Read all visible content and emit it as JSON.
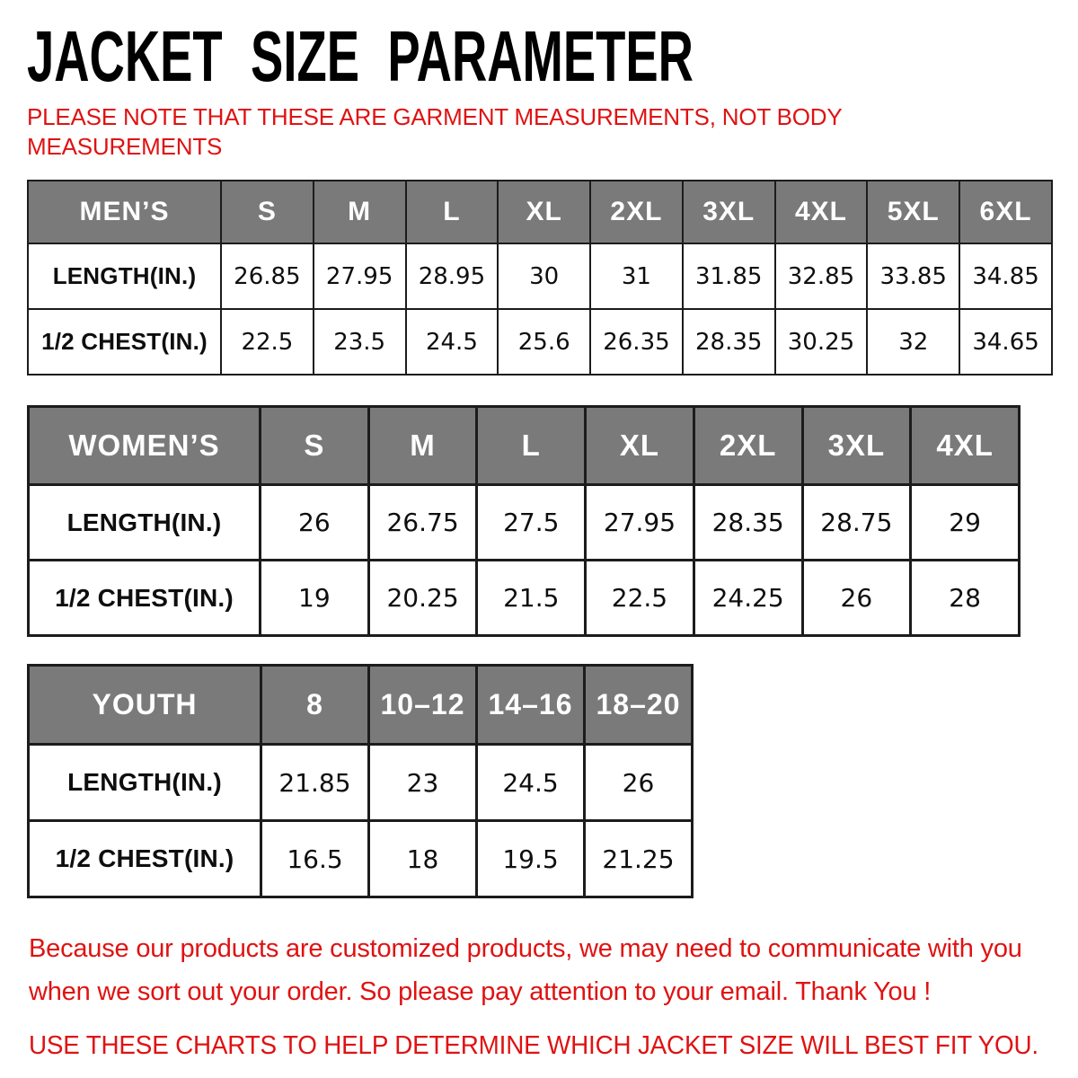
{
  "title": "JACKET SIZE PARAMETER",
  "note": "PLEASE NOTE THAT THESE ARE GARMENT MEASUREMENTS, NOT BODY\nMEASUREMENTS",
  "chart_data": [
    {
      "type": "table",
      "id": "mens",
      "name": "MEN’S",
      "columns": [
        "S",
        "M",
        "L",
        "XL",
        "2XL",
        "3XL",
        "4XL",
        "5XL",
        "6XL"
      ],
      "rows": [
        {
          "label": "LENGTH(IN.)",
          "values": [
            "26.85",
            "27.95",
            "28.95",
            "30",
            "31",
            "31.85",
            "32.85",
            "33.85",
            "34.85"
          ]
        },
        {
          "label": "1/2 CHEST(IN.)",
          "values": [
            "22.5",
            "23.5",
            "24.5",
            "25.6",
            "26.35",
            "28.35",
            "30.25",
            "32",
            "34.65"
          ]
        }
      ]
    },
    {
      "type": "table",
      "id": "womens",
      "name": "WOMEN’S",
      "columns": [
        "S",
        "M",
        "L",
        "XL",
        "2XL",
        "3XL",
        "4XL"
      ],
      "rows": [
        {
          "label": "LENGTH(IN.)",
          "values": [
            "26",
            "26.75",
            "27.5",
            "27.95",
            "28.35",
            "28.75",
            "29"
          ]
        },
        {
          "label": "1/2 CHEST(IN.)",
          "values": [
            "19",
            "20.25",
            "21.5",
            "22.5",
            "24.25",
            "26",
            "28"
          ]
        }
      ]
    },
    {
      "type": "table",
      "id": "youth",
      "name": "YOUTH",
      "columns": [
        "8",
        "10–12",
        "14–16",
        "18–20"
      ],
      "rows": [
        {
          "label": "LENGTH(IN.)",
          "values": [
            "21.85",
            "23",
            "24.5",
            "26"
          ]
        },
        {
          "label": "1/2 CHEST(IN.)",
          "values": [
            "16.5",
            "18",
            "19.5",
            "21.25"
          ]
        }
      ]
    }
  ],
  "footer": {
    "paragraph": "Because our products are customized products, we may need to communicate with you\nwhen we sort out your order. So please pay attention to your email. Thank You !",
    "advice": "USE THESE CHARTS TO HELP DETERMINE WHICH JACKET SIZE WILL BEST FIT YOU."
  },
  "colors": {
    "accent_red": "#e01212",
    "header_gray": "#7a7a7a",
    "border_dark": "#1c1c1c"
  }
}
